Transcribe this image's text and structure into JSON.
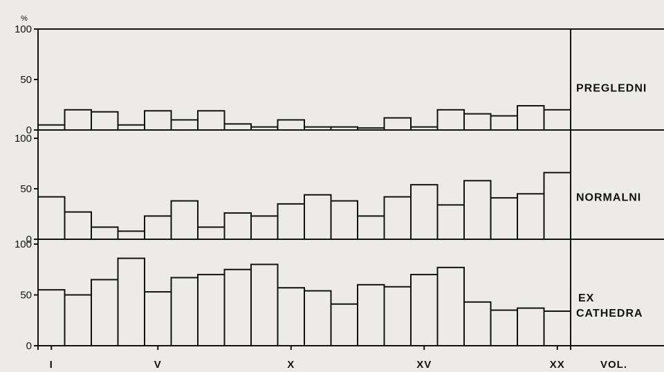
{
  "chart_data": {
    "type": "bar",
    "unit": "%",
    "ylim": [
      0,
      100
    ],
    "yticks": [
      0,
      50,
      100
    ],
    "categories": [
      "I",
      "II",
      "III",
      "IV",
      "V",
      "VI",
      "VII",
      "VIII",
      "IX",
      "X",
      "XI",
      "XII",
      "XIII",
      "XIV",
      "XV",
      "XVI",
      "XVII",
      "XVIII",
      "XIX",
      "XX"
    ],
    "xtick_labels": [
      {
        "category": "I",
        "label": "I"
      },
      {
        "category": "V",
        "label": "V"
      },
      {
        "category": "X",
        "label": "X"
      },
      {
        "category": "XV",
        "label": "XV"
      },
      {
        "category": "XX",
        "label": "XX"
      }
    ],
    "xtick_end_label": "VOL.",
    "panels": [
      {
        "label": "PREGLEDNI",
        "values": [
          5,
          20,
          18,
          5,
          19,
          10,
          19,
          6,
          3,
          10,
          3,
          3,
          2,
          12,
          3,
          20,
          16,
          14,
          24,
          20
        ]
      },
      {
        "label": "NORMALNI",
        "values": [
          42,
          27,
          12,
          8,
          23,
          38,
          12,
          26,
          23,
          35,
          44,
          38,
          23,
          42,
          54,
          34,
          58,
          41,
          45,
          66
        ]
      },
      {
        "label": "EX CATHEDRA",
        "values": [
          55,
          50,
          65,
          86,
          53,
          67,
          70,
          75,
          80,
          57,
          54,
          41,
          60,
          58,
          70,
          77,
          43,
          35,
          37,
          34
        ]
      }
    ]
  }
}
